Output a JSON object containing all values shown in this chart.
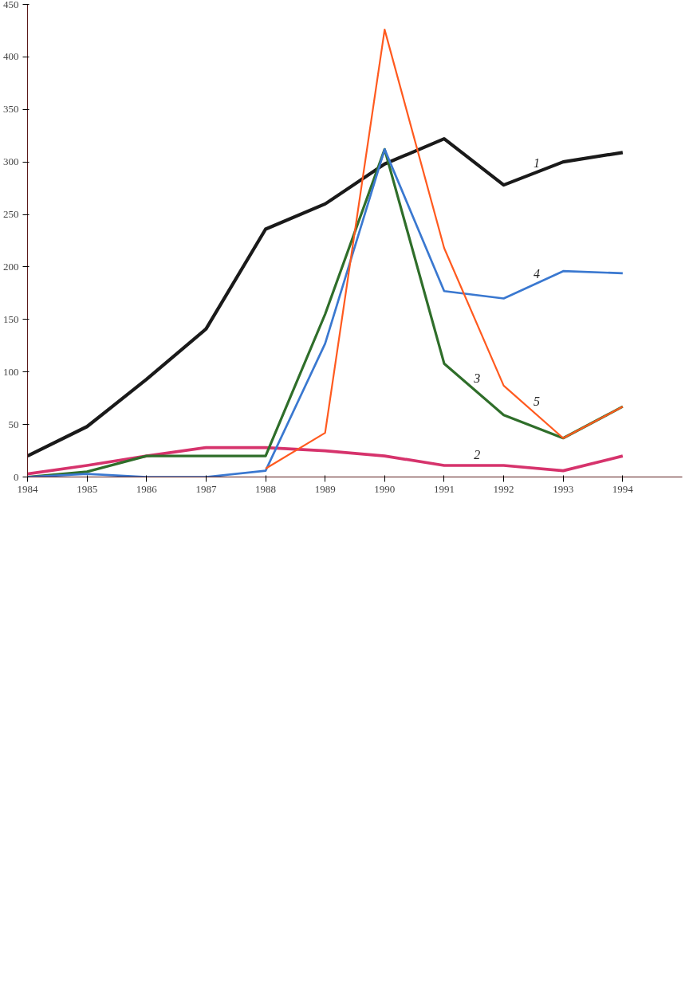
{
  "chart_data": {
    "type": "line",
    "x": [
      1984,
      1985,
      1986,
      1987,
      1988,
      1989,
      1990,
      1991,
      1992,
      1993,
      1994
    ],
    "series": [
      {
        "name": "1",
        "color": "#1a1a1a",
        "values": [
          20,
          48,
          93,
          141,
          236,
          260,
          298,
          322,
          278,
          300,
          309
        ]
      },
      {
        "name": "2",
        "color": "#d6336c",
        "values": [
          3,
          11,
          20,
          28,
          28,
          25,
          20,
          11,
          11,
          6,
          20
        ]
      },
      {
        "name": "3",
        "color": "#2f6e2a",
        "values": [
          0,
          5,
          20,
          20,
          20,
          155,
          312,
          108,
          59,
          37,
          67
        ]
      },
      {
        "name": "4",
        "color": "#3a78d0",
        "values": [
          0,
          3,
          0,
          0,
          6,
          127,
          312,
          177,
          170,
          196,
          194
        ]
      },
      {
        "name": "5",
        "color": "#ff5a1f",
        "values": [
          null,
          null,
          null,
          null,
          8,
          42,
          426,
          218,
          87,
          37,
          67
        ]
      }
    ],
    "xlim": [
      1984,
      1995
    ],
    "xticks": [
      1984,
      1985,
      1986,
      1987,
      1988,
      1989,
      1990,
      1991,
      1992,
      1993,
      1994
    ],
    "ylim": [
      0,
      450
    ],
    "yticks": [
      0,
      50,
      100,
      150,
      200,
      250,
      300,
      350,
      400,
      450
    ],
    "grid": false,
    "marker": "none",
    "line_style": "solid"
  }
}
